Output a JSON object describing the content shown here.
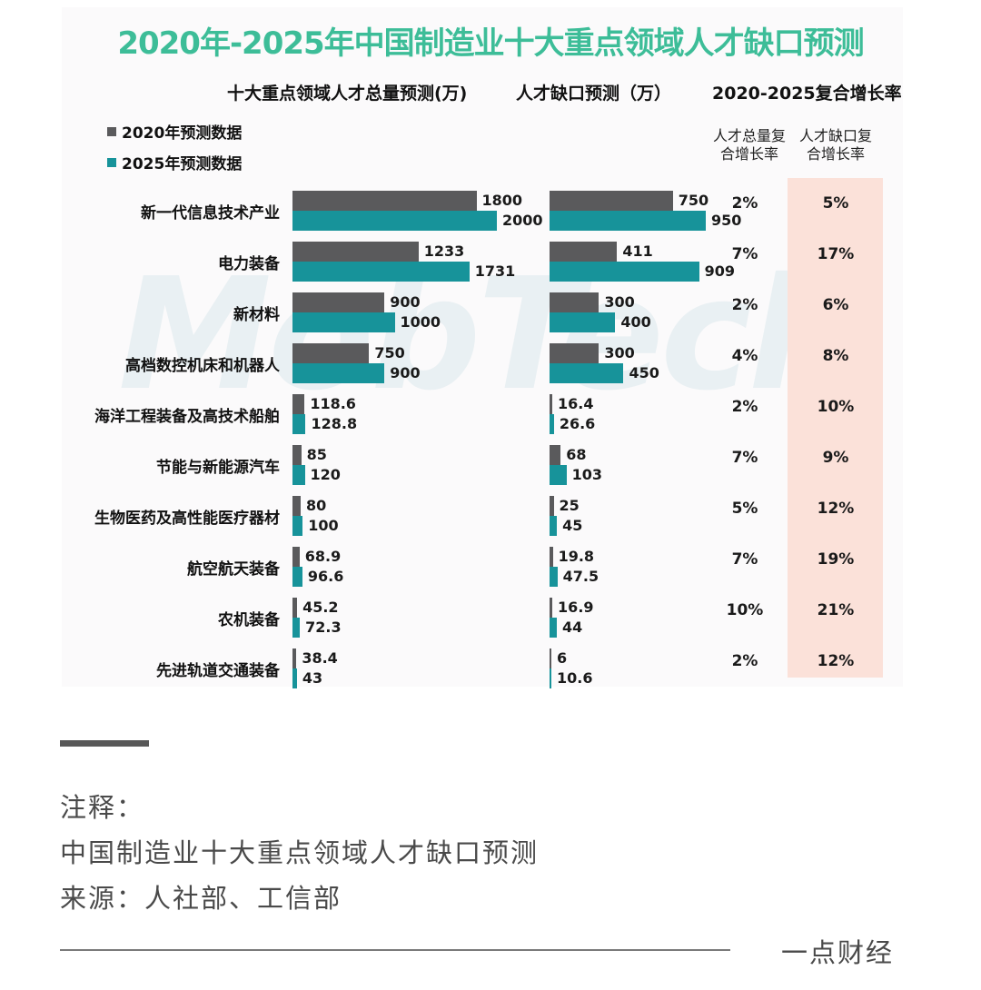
{
  "title": "2020年-2025年中国制造业十大重点领域人才缺口预测",
  "headers": {
    "total": "十大重点领域人才总量预测(万)",
    "gap": "人才缺口预测（万）",
    "cagr": "2020-2025复合增长率",
    "cagr_total_line1": "人才总量复",
    "cagr_total_line2": "合增长率",
    "cagr_gap_line1": "人才缺口复",
    "cagr_gap_line2": "合增长率"
  },
  "legend": {
    "y2020": "2020年预测数据",
    "y2025": "2025年预测数据"
  },
  "colors": {
    "title": "#3dbd98",
    "y2020": "#5a5a5c",
    "y2025": "#17939a",
    "highlight": "#fbe1d9"
  },
  "watermark": "MobTech",
  "rows": [
    {
      "label": "新一代信息技术产业",
      "total_2020": "1800",
      "total_2025": "2000",
      "gap_2020": "750",
      "gap_2025": "950",
      "cagr_total": "2%",
      "cagr_gap": "5%"
    },
    {
      "label": "电力装备",
      "total_2020": "1233",
      "total_2025": "1731",
      "gap_2020": "411",
      "gap_2025": "909",
      "cagr_total": "7%",
      "cagr_gap": "17%"
    },
    {
      "label": "新材料",
      "total_2020": "900",
      "total_2025": "1000",
      "gap_2020": "300",
      "gap_2025": "400",
      "cagr_total": "2%",
      "cagr_gap": "6%"
    },
    {
      "label": "高档数控机床和机器人",
      "total_2020": "750",
      "total_2025": "900",
      "gap_2020": "300",
      "gap_2025": "450",
      "cagr_total": "4%",
      "cagr_gap": "8%"
    },
    {
      "label": "海洋工程装备及高技术船舶",
      "total_2020": "118.6",
      "total_2025": "128.8",
      "gap_2020": "16.4",
      "gap_2025": "26.6",
      "cagr_total": "2%",
      "cagr_gap": "10%"
    },
    {
      "label": "节能与新能源汽车",
      "total_2020": "85",
      "total_2025": "120",
      "gap_2020": "68",
      "gap_2025": "103",
      "cagr_total": "7%",
      "cagr_gap": "9%"
    },
    {
      "label": "生物医药及高性能医疗器材",
      "total_2020": "80",
      "total_2025": "100",
      "gap_2020": "25",
      "gap_2025": "45",
      "cagr_total": "5%",
      "cagr_gap": "12%"
    },
    {
      "label": "航空航天装备",
      "total_2020": "68.9",
      "total_2025": "96.6",
      "gap_2020": "19.8",
      "gap_2025": "47.5",
      "cagr_total": "7%",
      "cagr_gap": "19%"
    },
    {
      "label": "农机装备",
      "total_2020": "45.2",
      "total_2025": "72.3",
      "gap_2020": "16.9",
      "gap_2025": "44",
      "cagr_total": "10%",
      "cagr_gap": "21%"
    },
    {
      "label": "先进轨道交通装备",
      "total_2020": "38.4",
      "total_2025": "43",
      "gap_2020": "6",
      "gap_2025": "10.6",
      "cagr_total": "2%",
      "cagr_gap": "12%"
    }
  ],
  "notes": {
    "heading": "注释：",
    "line1": "中国制造业十大重点领域人才缺口预测",
    "line2": "来源：人社部、工信部"
  },
  "brand": "一点财经",
  "chart_data": {
    "type": "bar",
    "title": "2020年-2025年中国制造业十大重点领域人才缺口预测",
    "orientation": "horizontal",
    "categories": [
      "新一代信息技术产业",
      "电力装备",
      "新材料",
      "高档数控机床和机器人",
      "海洋工程装备及高技术船舶",
      "节能与新能源汽车",
      "生物医药及高性能医疗器材",
      "航空航天装备",
      "农机装备",
      "先进轨道交通装备"
    ],
    "panels": [
      {
        "title": "十大重点领域人才总量预测(万)",
        "series": [
          {
            "name": "2020年预测数据",
            "values": [
              1800,
              1233,
              900,
              750,
              118.6,
              85,
              80,
              68.9,
              45.2,
              38.4
            ]
          },
          {
            "name": "2025年预测数据",
            "values": [
              2000,
              1731,
              1000,
              900,
              128.8,
              120,
              100,
              96.6,
              72.3,
              43
            ]
          }
        ]
      },
      {
        "title": "人才缺口预测（万）",
        "series": [
          {
            "name": "2020年预测数据",
            "values": [
              750,
              411,
              300,
              300,
              16.4,
              68,
              25,
              19.8,
              16.9,
              6
            ]
          },
          {
            "name": "2025年预测数据",
            "values": [
              950,
              909,
              400,
              450,
              26.6,
              103,
              45,
              47.5,
              44,
              10.6
            ]
          }
        ]
      },
      {
        "title": "2020-2025复合增长率",
        "type": "table",
        "columns": [
          "人才总量复合增长率",
          "人才缺口复合增长率"
        ],
        "values": [
          [
            "2%",
            "5%"
          ],
          [
            "7%",
            "17%"
          ],
          [
            "2%",
            "6%"
          ],
          [
            "4%",
            "8%"
          ],
          [
            "2%",
            "10%"
          ],
          [
            "7%",
            "9%"
          ],
          [
            "5%",
            "12%"
          ],
          [
            "7%",
            "19%"
          ],
          [
            "10%",
            "21%"
          ],
          [
            "2%",
            "12%"
          ]
        ]
      }
    ],
    "legend": [
      "2020年预测数据",
      "2025年预测数据"
    ],
    "legend_position": "top-left",
    "grid": false,
    "xlabel": "",
    "ylabel": ""
  }
}
